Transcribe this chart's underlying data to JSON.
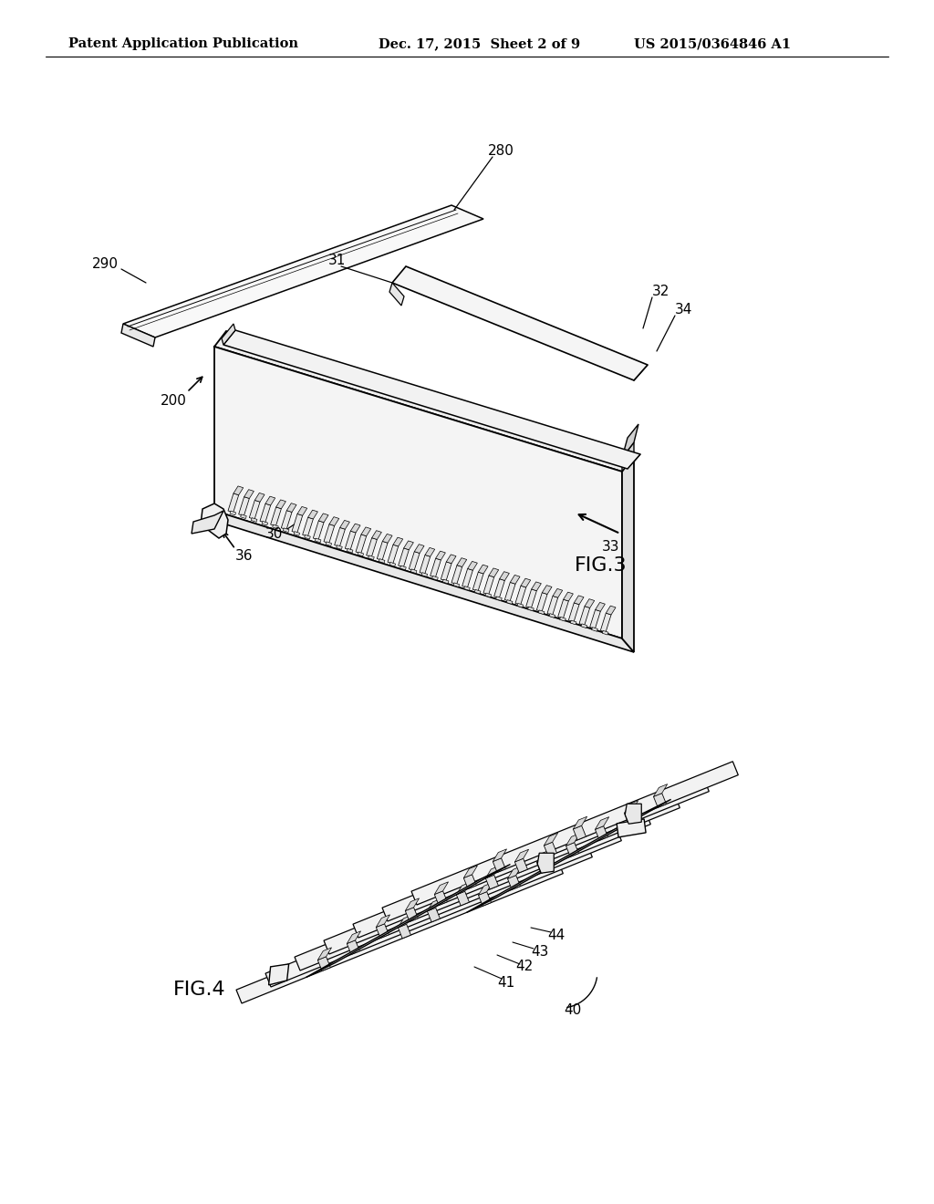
{
  "bg_color": "#ffffff",
  "header_left": "Patent Application Publication",
  "header_mid": "Dec. 17, 2015  Sheet 2 of 9",
  "header_right": "US 2015/0364846 A1",
  "text_color": "#000000",
  "header_fontsize": 10.5,
  "ref_fontsize": 11,
  "fig_label_fontsize": 16,
  "fig3_label": "FIG.3",
  "fig4_label": "FIG.4",
  "lw_main": 1.4,
  "lw_detail": 0.9,
  "lw_thin": 0.6,
  "fc_white": "#ffffff",
  "fc_light": "#f0f0f0",
  "fc_mid": "#e0e0e0",
  "fc_dark": "#c8c8c8"
}
